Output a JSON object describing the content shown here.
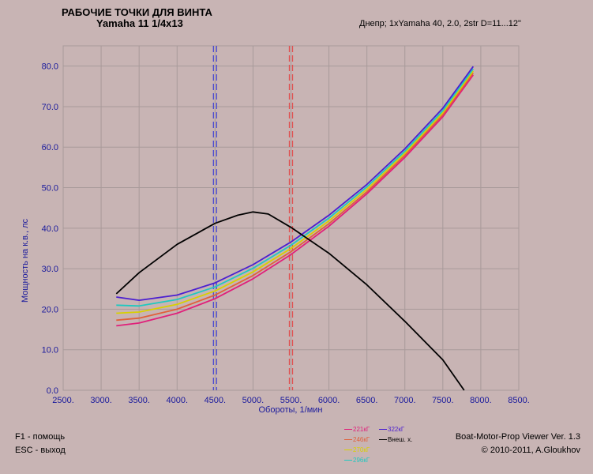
{
  "header": {
    "title": "РАБОЧИЕ ТОЧКИ ДЛЯ ВИНТА",
    "subtitle": "Yamaha 11 1/4x13",
    "config": "Днепр; 1xYamaha 40, 2.0, 2str D=11...12\""
  },
  "footer": {
    "help_f1": "F1 - помощь",
    "help_esc": "ESC - выход",
    "app_name": "Boat-Motor-Prop Viewer Ver. 1.3",
    "copyright": "© 2010-2011, A.Gloukhov"
  },
  "legend": {
    "items": [
      {
        "label": "221кГ",
        "color": "#e0207a"
      },
      {
        "label": "322кГ",
        "color": "#4b1fd0"
      },
      {
        "label": "246кГ",
        "color": "#e0603a"
      },
      {
        "label": "Внеш. х.",
        "color": "#000000"
      },
      {
        "label": "270кГ",
        "color": "#d8d000"
      },
      {
        "label": "296кГ",
        "color": "#20c8c0"
      }
    ]
  },
  "chart_data": {
    "type": "line",
    "xlabel": "Обороты, 1/мин",
    "ylabel": "Мощность на к.в., лс",
    "xlim": [
      2500,
      8500
    ],
    "ylim": [
      0,
      85
    ],
    "xticks": [
      "2500.",
      "3000.",
      "3500.",
      "4000.",
      "4500.",
      "5000.",
      "5500.",
      "6000.",
      "6500.",
      "7000.",
      "7500.",
      "8000.",
      "8500."
    ],
    "yticks": [
      "0.0",
      "10.0",
      "20.0",
      "30.0",
      "40.0",
      "50.0",
      "60.0",
      "70.0",
      "80.0"
    ],
    "grid": true,
    "vlines": [
      {
        "x": 4500,
        "color": "#4b4bd0"
      },
      {
        "x": 5500,
        "color": "#e05050"
      }
    ],
    "series": [
      {
        "name": "221кГ",
        "color": "#e0207a",
        "x": [
          3200,
          3500,
          4000,
          4500,
          5000,
          5500,
          6000,
          6500,
          7000,
          7500,
          7900
        ],
        "y": [
          15.9,
          16.6,
          19.0,
          22.6,
          27.5,
          33.5,
          40.5,
          48.5,
          57.5,
          67.5,
          77.8
        ]
      },
      {
        "name": "246кГ",
        "color": "#e0603a",
        "x": [
          3200,
          3500,
          4000,
          4500,
          5000,
          5500,
          6000,
          6500,
          7000,
          7500,
          7900
        ],
        "y": [
          17.3,
          17.8,
          20.0,
          23.5,
          28.3,
          34.2,
          41.1,
          49.0,
          58.0,
          68.0,
          78.3
        ]
      },
      {
        "name": "270кГ",
        "color": "#d8d000",
        "x": [
          3200,
          3500,
          4000,
          4500,
          5000,
          5500,
          6000,
          6500,
          7000,
          7500,
          7900
        ],
        "y": [
          19.0,
          19.3,
          21.2,
          24.5,
          29.2,
          35.0,
          41.8,
          49.6,
          58.5,
          68.5,
          78.8
        ]
      },
      {
        "name": "296кГ",
        "color": "#20c8c0",
        "x": [
          3200,
          3500,
          4000,
          4500,
          5000,
          5500,
          6000,
          6500,
          7000,
          7500,
          7900
        ],
        "y": [
          21.0,
          20.8,
          22.4,
          25.5,
          30.1,
          35.8,
          42.5,
          50.2,
          59.0,
          69.0,
          79.3
        ]
      },
      {
        "name": "322кГ",
        "color": "#4b1fd0",
        "x": [
          3200,
          3500,
          4000,
          4500,
          5000,
          5500,
          6000,
          6500,
          7000,
          7500,
          7900
        ],
        "y": [
          23.0,
          22.2,
          23.5,
          26.5,
          31.0,
          36.6,
          43.2,
          50.8,
          59.6,
          69.6,
          79.9
        ]
      },
      {
        "name": "Внеш. х.",
        "color": "#000000",
        "x": [
          3200,
          3500,
          4000,
          4500,
          4800,
          5000,
          5200,
          5500,
          6000,
          6500,
          7000,
          7500,
          7780
        ],
        "y": [
          23.8,
          29.0,
          36.0,
          41.2,
          43.2,
          44.0,
          43.5,
          40.2,
          33.8,
          26.0,
          17.0,
          7.5,
          0.0
        ]
      }
    ]
  }
}
